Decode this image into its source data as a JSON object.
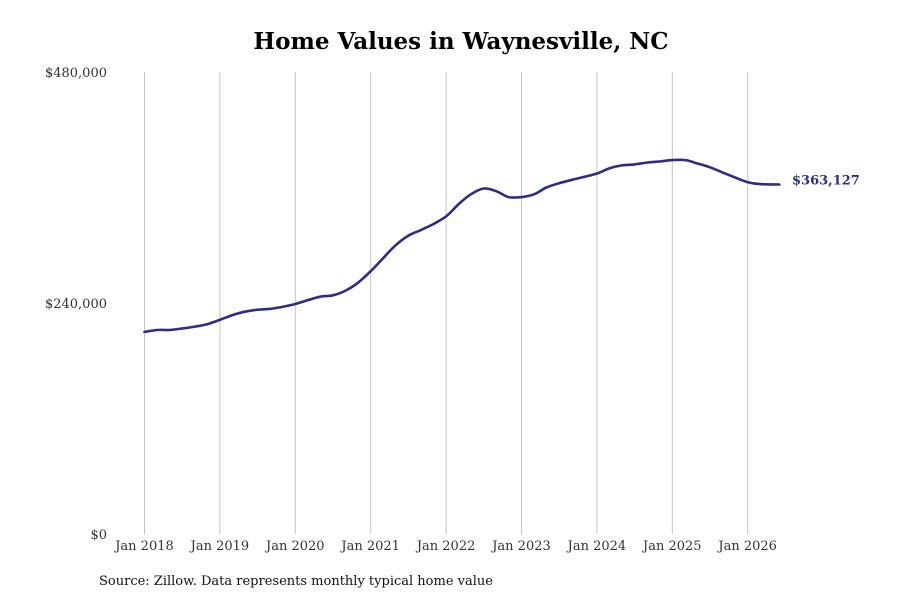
{
  "chart_data": {
    "type": "line",
    "title": "Home Values in Waynesville, NC",
    "xlabel": "",
    "ylabel": "",
    "ylim": [
      0,
      480000
    ],
    "y_ticks": [
      {
        "value": 0,
        "label": "$0"
      },
      {
        "value": 240000,
        "label": "$240,000"
      },
      {
        "value": 480000,
        "label": "$480,000"
      }
    ],
    "x_ticks": [
      {
        "value": 2018,
        "label": "Jan 2018"
      },
      {
        "value": 2019,
        "label": "Jan 2019"
      },
      {
        "value": 2020,
        "label": "Jan 2020"
      },
      {
        "value": 2021,
        "label": "Jan 2021"
      },
      {
        "value": 2022,
        "label": "Jan 2022"
      },
      {
        "value": 2023,
        "label": "Jan 2023"
      },
      {
        "value": 2024,
        "label": "Jan 2024"
      },
      {
        "value": 2025,
        "label": "Jan 2025"
      },
      {
        "value": 2026,
        "label": "Jan 2026"
      }
    ],
    "grid": "vertical",
    "line_color": "#2e2d83",
    "end_label": "$363,127",
    "series": [
      {
        "x": [
          2018.0,
          2018.17,
          2018.33,
          2018.5,
          2018.67,
          2018.83,
          2019.0,
          2019.17,
          2019.33,
          2019.5,
          2019.67,
          2019.83,
          2020.0,
          2020.17,
          2020.33,
          2020.5,
          2020.67,
          2020.83,
          2021.0,
          2021.17,
          2021.33,
          2021.5,
          2021.67,
          2021.83,
          2022.0,
          2022.17,
          2022.33,
          2022.5,
          2022.67,
          2022.83,
          2023.0,
          2023.17,
          2023.33,
          2023.5,
          2023.67,
          2023.83,
          2024.0,
          2024.17,
          2024.33,
          2024.5,
          2024.67,
          2024.83,
          2025.0,
          2025.17,
          2025.33,
          2025.5,
          2025.67,
          2025.83,
          2026.0,
          2026.17,
          2026.42
        ],
        "y": [
          210000,
          212000,
          212000,
          213500,
          215500,
          218000,
          222500,
          227500,
          231000,
          233000,
          234000,
          236000,
          239000,
          243000,
          246500,
          248000,
          253000,
          261000,
          273000,
          287000,
          300000,
          310000,
          316000,
          322000,
          330000,
          343000,
          353000,
          359000,
          356000,
          350000,
          350000,
          353000,
          360000,
          364500,
          368000,
          371000,
          374500,
          380000,
          383000,
          384000,
          386000,
          387000,
          388500,
          388500,
          385000,
          381000,
          375500,
          370500,
          365500,
          363500,
          363127
        ]
      }
    ]
  },
  "source_note": "Source: Zillow. Data represents monthly typical home value"
}
